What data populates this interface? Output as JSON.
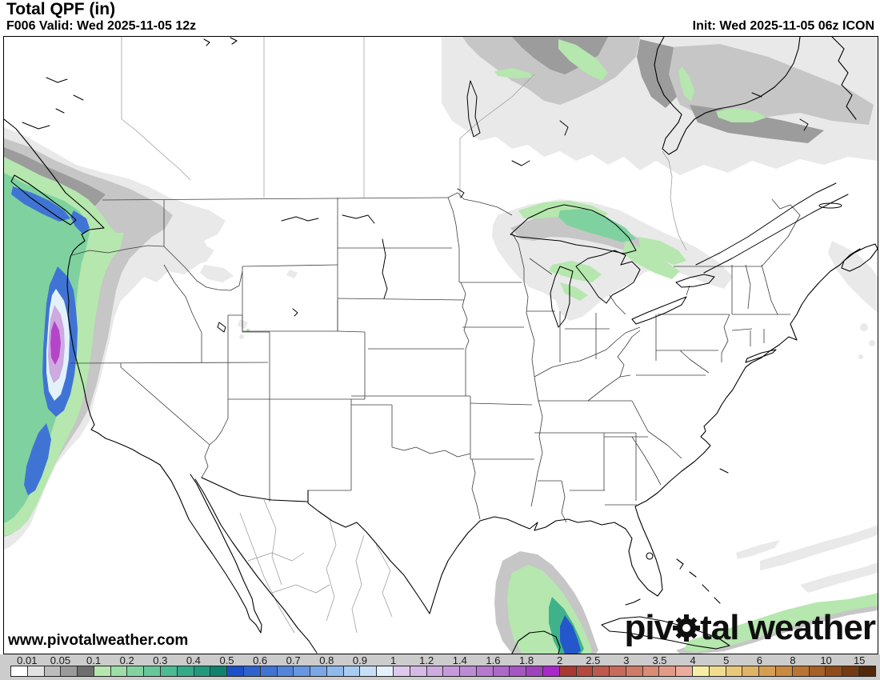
{
  "header": {
    "title": "Total QPF (in)",
    "valid_line": "F006 Valid: Wed 2025-11-05 12z",
    "init_line": "Init: Wed 2025-11-05 06z ICON"
  },
  "watermark": "www.pivotalweather.com",
  "logo": {
    "text_before_gear": "piv",
    "text_after_gear": "tal",
    "second_word": " weather",
    "color": "#0f0f0f"
  },
  "map": {
    "type": "precipitation-forecast-map",
    "region": "Continental United States and southern Canada / Mexico",
    "background": "#ffffff",
    "coastline_color": "#000000",
    "us_state_border_color": "#3c3c3c",
    "non_us_border_color": "#9a9a9a",
    "precip_regions": [
      "Pacific Northwest / BC coast: heavy band, core 1.2-1.8 in (lavender-magenta) over SW Oregon coast",
      "Vancouver Island: 0.5-0.9 in blue streak",
      "Northern Rockies / Montana: trace gray patches",
      "Southern Canada Manitoba-Ontario-Quebec: 0.01-0.1 in gray band with 0.1-0.2 in green streaks",
      "Lake Superior / northern Great Lakes: 0.1-0.3 in green streaks with gray fringe",
      "Atlantic / New England offshore: trace gray",
      "Gulf of Mexico / Yucatan: 0.1-0.7 in blob with blue core",
      "Cuba / Bahamas: 0.1-0.2 in elongated band"
    ]
  },
  "colorbar": {
    "background": "#cccccc",
    "border_color": "#222222",
    "label_color": "#1a1a1a",
    "labels": [
      "0.01",
      "0.05",
      "0.1",
      "0.2",
      "0.3",
      "0.4",
      "0.5",
      "0.6",
      "0.7",
      "0.8",
      "0.9",
      "1",
      "1.2",
      "1.4",
      "1.6",
      "1.8",
      "2",
      "2.5",
      "3",
      "3.5",
      "4",
      "5",
      "6",
      "8",
      "10",
      "15"
    ],
    "cells": [
      "#ffffff",
      "#e2e2e2",
      "#bcbcbc",
      "#9a9a9a",
      "#6e6e6e",
      "#b5e7ae",
      "#9cdea6",
      "#82d3a0",
      "#67c79a",
      "#4cba92",
      "#33aa88",
      "#20997c",
      "#0f826e",
      "#1c50c8",
      "#2e62ce",
      "#4074d4",
      "#5385da",
      "#6697e0",
      "#7aa8e6",
      "#8fbaec",
      "#a8ccf1",
      "#c6dff6",
      "#e3f2fa",
      "#ddc9ec",
      "#d5b9e6",
      "#cdaae0",
      "#c59ada",
      "#bd8ad4",
      "#b579ce",
      "#ad68c8",
      "#a556c2",
      "#9d44bc",
      "#a928c8",
      "#a93a33",
      "#b34a40",
      "#bd5a4d",
      "#c76a5a",
      "#d17a67",
      "#db8a74",
      "#e39a85",
      "#ebac9b",
      "#f6eda4",
      "#f1dc8e",
      "#eac878",
      "#e1b364",
      "#d69e50",
      "#c98940",
      "#ba7431",
      "#a65f24",
      "#8f4c1a",
      "#753a11",
      "#52280a"
    ]
  }
}
